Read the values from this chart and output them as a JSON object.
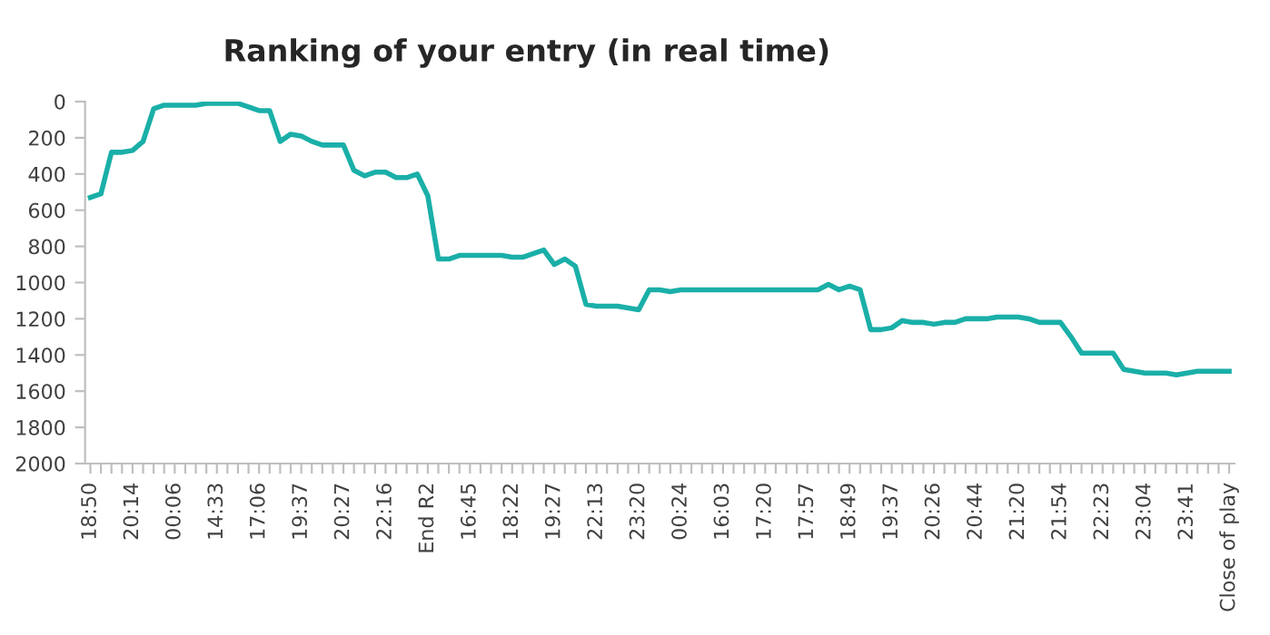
{
  "chart_data": {
    "type": "line",
    "title": "Ranking of your entry (in real time)",
    "categories": [
      "18:50",
      null,
      null,
      null,
      "20:14",
      null,
      null,
      null,
      "00:06",
      null,
      null,
      null,
      "14:33",
      null,
      null,
      null,
      "17:06",
      null,
      null,
      null,
      "19:37",
      null,
      null,
      null,
      "20:27",
      null,
      null,
      null,
      "22:16",
      null,
      null,
      null,
      "End R2",
      null,
      null,
      null,
      "16:45",
      null,
      null,
      null,
      "18:22",
      null,
      null,
      null,
      "19:27",
      null,
      null,
      null,
      "22:13",
      null,
      null,
      null,
      "23:20",
      null,
      null,
      null,
      "00:24",
      null,
      null,
      null,
      "16:03",
      null,
      null,
      null,
      "17:20",
      null,
      null,
      null,
      "17:57",
      null,
      null,
      null,
      "18:49",
      null,
      null,
      null,
      "19:37",
      null,
      null,
      null,
      "20:26",
      null,
      null,
      null,
      "20:44",
      null,
      null,
      null,
      "21:20",
      null,
      null,
      null,
      "21:54",
      null,
      null,
      null,
      "22:23",
      null,
      null,
      null,
      "23:04",
      null,
      null,
      null,
      "23:41",
      null,
      null,
      null,
      "Close of play"
    ],
    "series": [
      {
        "color": "#1aafa8",
        "values": [
          530,
          510,
          280,
          280,
          270,
          220,
          40,
          20,
          20,
          20,
          20,
          10,
          10,
          10,
          10,
          30,
          50,
          50,
          220,
          180,
          190,
          220,
          240,
          240,
          240,
          380,
          410,
          390,
          390,
          420,
          420,
          400,
          520,
          870,
          870,
          850,
          850,
          850,
          850,
          850,
          860,
          860,
          840,
          820,
          900,
          870,
          910,
          1120,
          1130,
          1130,
          1130,
          1140,
          1150,
          1040,
          1040,
          1050,
          1040,
          1040,
          1040,
          1040,
          1040,
          1040,
          1040,
          1040,
          1040,
          1040,
          1040,
          1040,
          1040,
          1040,
          1010,
          1040,
          1020,
          1040,
          1260,
          1260,
          1250,
          1210,
          1220,
          1220,
          1230,
          1220,
          1220,
          1200,
          1200,
          1200,
          1190,
          1190,
          1190,
          1200,
          1220,
          1220,
          1220,
          1300,
          1390,
          1390,
          1390,
          1390,
          1480,
          1490,
          1500,
          1500,
          1500,
          1510,
          1500,
          1490,
          1490,
          1490,
          1490
        ]
      }
    ],
    "ylim": [
      2000,
      0
    ],
    "yticks": [
      0,
      200,
      400,
      600,
      800,
      1000,
      1200,
      1400,
      1600,
      1800,
      2000
    ],
    "grid": false,
    "marker": "none",
    "line_style": "solid"
  }
}
